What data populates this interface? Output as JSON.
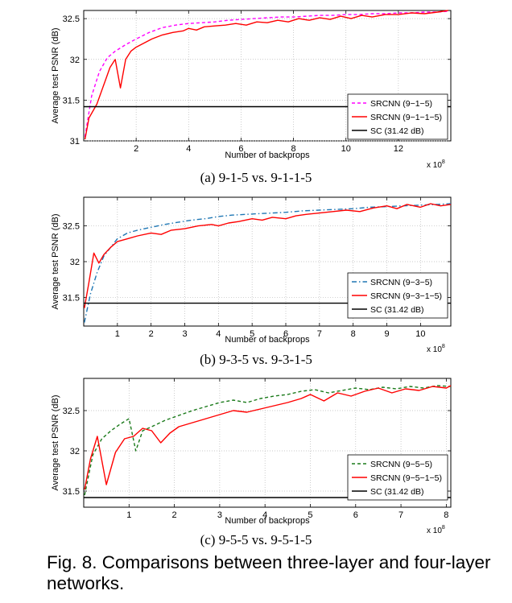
{
  "figure_caption": "Fig. 8.  Comparisons between three-layer and four-layer networks.",
  "colors": {
    "magenta": "#ff00ff",
    "red": "#ff0000",
    "black": "#000000",
    "blue": "#1f77b4",
    "green": "#1a7a1a"
  },
  "chart_data": [
    {
      "type": "line",
      "subcaption": "(a)  9-1-5  vs.  9-1-1-5",
      "xlabel": "Number of backprops",
      "ylabel": "Average test PSNR (dB)",
      "x_exponent": "x 10",
      "x_exponent_power": "8",
      "xlim": [
        0,
        14
      ],
      "ylim": [
        31,
        32.6
      ],
      "xticks": [
        2,
        4,
        6,
        8,
        10,
        12
      ],
      "xtick_labels": [
        "2",
        "4",
        "6",
        "8",
        "10",
        "12"
      ],
      "yticks": [
        31,
        31.5,
        32,
        32.5
      ],
      "ytick_labels": [
        "31",
        "31.5",
        "32",
        "32.5"
      ],
      "legend_position": "bottom-right",
      "series": [
        {
          "name": "SRCNN (9−1−5)",
          "color": "#ff00ff",
          "dash": "dashed",
          "x": [
            0.05,
            0.3,
            0.6,
            0.9,
            1.2,
            1.6,
            2.0,
            2.5,
            3.0,
            3.5,
            4.0,
            4.5,
            5.0,
            5.5,
            6.0,
            6.5,
            7.0,
            7.5,
            8.0,
            8.5,
            9.0,
            9.5,
            10.0,
            10.5,
            11.0,
            11.5,
            12.0,
            12.5,
            13.0,
            13.5,
            13.9
          ],
          "y": [
            31.05,
            31.55,
            31.85,
            32.02,
            32.1,
            32.18,
            32.25,
            32.33,
            32.39,
            32.42,
            32.44,
            32.45,
            32.46,
            32.48,
            32.49,
            32.5,
            32.51,
            32.52,
            32.52,
            32.53,
            32.54,
            32.54,
            32.55,
            32.55,
            32.56,
            32.56,
            32.57,
            32.57,
            32.58,
            32.58,
            32.59
          ]
        },
        {
          "name": "SRCNN (9−1−1−5)",
          "color": "#ff0000",
          "dash": "solid",
          "x": [
            0.05,
            0.2,
            0.5,
            0.8,
            1.0,
            1.2,
            1.4,
            1.6,
            1.8,
            2.0,
            2.3,
            2.6,
            3.0,
            3.4,
            3.8,
            4.0,
            4.3,
            4.6,
            5.0,
            5.4,
            5.8,
            6.2,
            6.6,
            7.0,
            7.4,
            7.8,
            8.2,
            8.6,
            9.0,
            9.4,
            9.8,
            10.2,
            10.6,
            11.0,
            11.5,
            12.0,
            12.5,
            13.0,
            13.5,
            13.9
          ],
          "y": [
            31.02,
            31.28,
            31.45,
            31.72,
            31.9,
            32.0,
            31.65,
            32.0,
            32.1,
            32.15,
            32.2,
            32.25,
            32.3,
            32.33,
            32.35,
            32.38,
            32.36,
            32.4,
            32.41,
            32.42,
            32.44,
            32.42,
            32.46,
            32.45,
            32.48,
            32.46,
            32.5,
            32.48,
            32.51,
            32.49,
            32.53,
            32.5,
            32.54,
            32.52,
            32.55,
            32.55,
            32.57,
            32.56,
            32.58,
            32.6
          ]
        },
        {
          "name": "SC (31.42 dB)",
          "color": "#000000",
          "dash": "solid",
          "x": [
            0,
            14
          ],
          "y": [
            31.42,
            31.42
          ]
        }
      ]
    },
    {
      "type": "line",
      "subcaption": "(b)  9-3-5  vs.  9-3-1-5",
      "xlabel": "Number of backprops",
      "ylabel": "Average test PSNR (dB)",
      "x_exponent": "x 10",
      "x_exponent_power": "8",
      "xlim": [
        0,
        10.9
      ],
      "ylim": [
        31.1,
        32.9
      ],
      "xticks": [
        1,
        2,
        3,
        4,
        5,
        6,
        7,
        8,
        9,
        10
      ],
      "xtick_labels": [
        "1",
        "2",
        "3",
        "4",
        "5",
        "6",
        "7",
        "8",
        "9",
        "10"
      ],
      "yticks": [
        31.5,
        32,
        32.5
      ],
      "ytick_labels": [
        "31.5",
        "32",
        "32.5"
      ],
      "legend_position": "bottom-right",
      "series": [
        {
          "name": "SRCNN (9−3−5)",
          "color": "#1f77b4",
          "dash": "dashdot",
          "x": [
            0.02,
            0.2,
            0.4,
            0.6,
            0.8,
            1.0,
            1.3,
            1.6,
            2.0,
            2.4,
            2.8,
            3.2,
            3.6,
            4.0,
            4.4,
            4.8,
            5.2,
            5.6,
            6.0,
            6.5,
            7.0,
            7.5,
            8.0,
            8.5,
            9.0,
            9.5,
            10.0,
            10.5,
            10.9
          ],
          "y": [
            31.15,
            31.55,
            31.85,
            32.08,
            32.2,
            32.32,
            32.4,
            32.44,
            32.48,
            32.52,
            32.55,
            32.58,
            32.6,
            32.63,
            32.65,
            32.66,
            32.67,
            32.68,
            32.69,
            32.71,
            32.72,
            32.73,
            32.74,
            32.76,
            32.77,
            32.78,
            32.79,
            32.8,
            32.81
          ]
        },
        {
          "name": "SRCNN (9−3−1−5)",
          "color": "#ff0000",
          "dash": "solid",
          "x": [
            0.02,
            0.15,
            0.3,
            0.45,
            0.6,
            0.8,
            1.0,
            1.3,
            1.6,
            2.0,
            2.3,
            2.6,
            3.0,
            3.4,
            3.8,
            4.0,
            4.3,
            4.6,
            5.0,
            5.3,
            5.6,
            6.0,
            6.3,
            6.6,
            7.0,
            7.4,
            7.8,
            8.2,
            8.6,
            9.0,
            9.3,
            9.6,
            10.0,
            10.3,
            10.6,
            10.9
          ],
          "y": [
            31.35,
            31.7,
            32.12,
            31.98,
            32.1,
            32.2,
            32.28,
            32.32,
            32.36,
            32.4,
            32.38,
            32.44,
            32.46,
            32.5,
            32.52,
            32.5,
            32.54,
            32.56,
            32.6,
            32.58,
            32.62,
            32.6,
            32.64,
            32.66,
            32.68,
            32.7,
            32.72,
            32.7,
            32.75,
            32.78,
            32.74,
            32.8,
            32.76,
            32.81,
            32.78,
            32.8
          ]
        },
        {
          "name": "SC (31.42 dB)",
          "color": "#000000",
          "dash": "solid",
          "x": [
            0,
            10.9
          ],
          "y": [
            31.42,
            31.42
          ]
        }
      ]
    },
    {
      "type": "line",
      "subcaption": "(c)  9-5-5  vs.  9-5-1-5",
      "xlabel": "Number of backprops",
      "ylabel": "Average test PSNR (dB)",
      "x_exponent": "x 10",
      "x_exponent_power": "8",
      "xlim": [
        0,
        8.1
      ],
      "ylim": [
        31.3,
        32.9
      ],
      "xticks": [
        1,
        2,
        3,
        4,
        5,
        6,
        7,
        8
      ],
      "xtick_labels": [
        "1",
        "2",
        "3",
        "4",
        "5",
        "6",
        "7",
        "8"
      ],
      "yticks": [
        31.5,
        32,
        32.5
      ],
      "ytick_labels": [
        "31.5",
        "32",
        "32.5"
      ],
      "legend_position": "bottom-right",
      "series": [
        {
          "name": "SRCNN (9−5−5)",
          "color": "#1a7a1a",
          "dash": "dashed",
          "x": [
            0.02,
            0.2,
            0.4,
            0.6,
            0.8,
            1.0,
            1.15,
            1.3,
            1.5,
            1.8,
            2.1,
            2.4,
            2.7,
            3.0,
            3.3,
            3.6,
            3.9,
            4.2,
            4.5,
            4.8,
            5.1,
            5.4,
            5.7,
            6.0,
            6.3,
            6.6,
            6.9,
            7.2,
            7.5,
            7.8,
            8.1
          ],
          "y": [
            31.45,
            31.95,
            32.15,
            32.25,
            32.33,
            32.4,
            32.0,
            32.25,
            32.3,
            32.38,
            32.44,
            32.5,
            32.55,
            32.6,
            32.63,
            32.6,
            32.65,
            32.68,
            32.7,
            32.74,
            32.76,
            32.72,
            32.75,
            32.78,
            32.76,
            32.79,
            32.77,
            32.8,
            32.78,
            32.81,
            32.8
          ]
        },
        {
          "name": "SRCNN (9−5−1−5)",
          "color": "#ff0000",
          "dash": "solid",
          "x": [
            0.02,
            0.15,
            0.3,
            0.5,
            0.7,
            0.9,
            1.1,
            1.3,
            1.5,
            1.7,
            1.9,
            2.1,
            2.4,
            2.7,
            3.0,
            3.3,
            3.6,
            3.9,
            4.2,
            4.5,
            4.8,
            5.0,
            5.3,
            5.6,
            5.9,
            6.2,
            6.5,
            6.8,
            7.1,
            7.4,
            7.7,
            8.0,
            8.1
          ],
          "y": [
            31.52,
            31.9,
            32.18,
            31.58,
            31.98,
            32.15,
            32.18,
            32.28,
            32.25,
            32.1,
            32.22,
            32.3,
            32.35,
            32.4,
            32.45,
            32.5,
            32.48,
            32.52,
            32.56,
            32.6,
            32.65,
            32.7,
            32.62,
            32.72,
            32.68,
            32.74,
            32.78,
            32.72,
            32.77,
            32.75,
            32.8,
            32.78,
            32.81
          ]
        },
        {
          "name": "SC (31.42 dB)",
          "color": "#000000",
          "dash": "solid",
          "x": [
            0,
            8.1
          ],
          "y": [
            31.42,
            31.42
          ]
        }
      ]
    }
  ]
}
